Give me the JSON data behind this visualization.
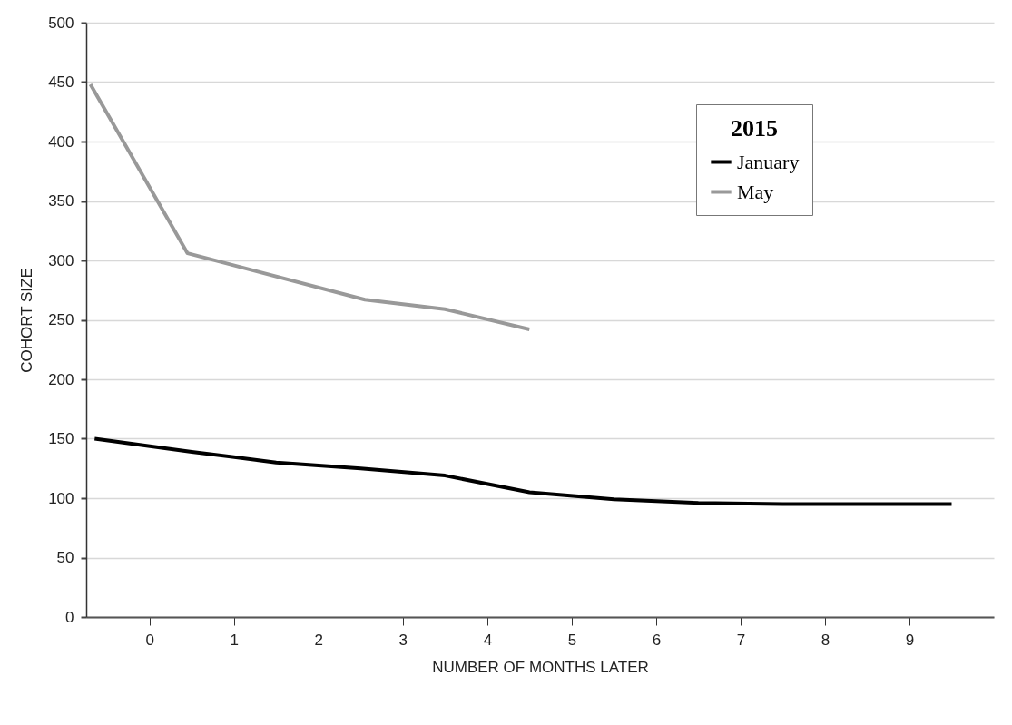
{
  "chart_data": {
    "type": "line",
    "xlabel": "NUMBER OF MONTHS LATER",
    "ylabel": "COHORT SIZE",
    "legend_title": "2015",
    "legend": "top right",
    "grid": "y",
    "xlim": [
      -0.75,
      10
    ],
    "xticks": [
      0,
      1,
      2,
      3,
      4,
      5,
      6,
      7,
      8,
      9
    ],
    "ylim": [
      0,
      500
    ],
    "yticks": [
      0,
      50,
      100,
      150,
      200,
      250,
      300,
      350,
      400,
      450,
      500
    ],
    "series": [
      {
        "name": "January",
        "color": "#000000",
        "x": [
          -0.65,
          0.5,
          1.5,
          2.5,
          3.5,
          4.5,
          5.5,
          6.5,
          7.5,
          8.5,
          9.5
        ],
        "values": [
          150,
          139,
          130,
          125,
          119,
          105,
          99,
          96,
          95,
          95,
          95
        ]
      },
      {
        "name": "May",
        "color": "#999999",
        "x": [
          -0.7,
          0.45,
          2.55,
          3.5,
          4.5
        ],
        "values": [
          448,
          306,
          267,
          259,
          242
        ]
      }
    ]
  }
}
